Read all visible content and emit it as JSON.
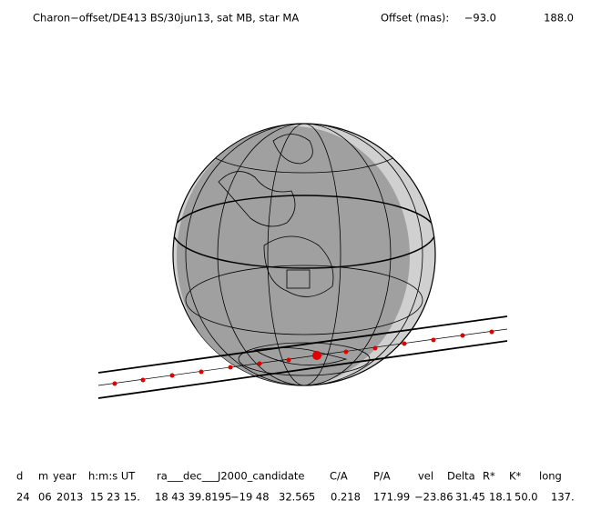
{
  "header": {
    "title": "Charon−offset/DE413 BS/30jun13, sat MB, star MA",
    "offset_label": "Offset (mas):",
    "offset_values": [
      "−93.0",
      "188.0"
    ]
  },
  "table": {
    "headers": [
      "d",
      "m",
      "year",
      "h:m:s UT",
      "ra___dec___J2000_candidate",
      "C/A",
      "P/A",
      "vel",
      "Delta",
      "R*",
      "K*",
      "long"
    ],
    "row": [
      "24",
      "06",
      "2013",
      "15 23 15.",
      "18 43 39.8195",
      "−19 48",
      "32.565",
      "0.218",
      "171.99",
      "−23.86",
      "31.45",
      "18.1",
      "50.0",
      "137."
    ]
  }
}
